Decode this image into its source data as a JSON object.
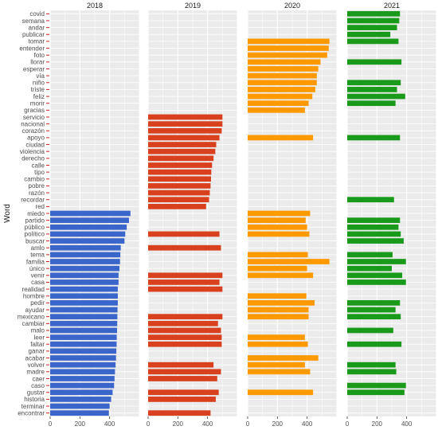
{
  "chart_data": {
    "type": "bar",
    "orientation": "horizontal",
    "ylabel": "Word",
    "xlim": [
      0,
      600
    ],
    "x_ticks": [
      "0",
      "200",
      "400"
    ],
    "grid": true,
    "words": [
      "covid",
      "semana",
      "andar",
      "publicar",
      "tomar",
      "entender",
      "foto",
      "llorar",
      "esperar",
      "vía",
      "niño",
      "triste",
      "feliz",
      "morir",
      "gracias",
      "servicio",
      "nacional",
      "corazón",
      "apoyo",
      "ciudad",
      "violencia",
      "derecho",
      "calle",
      "tipo",
      "cambio",
      "pobre",
      "razón",
      "recordar",
      "red",
      "miedo",
      "partido",
      "público",
      "político",
      "buscar",
      "amlo",
      "tema",
      "familia",
      "único",
      "venir",
      "casa",
      "realidad",
      "hombre",
      "pedir",
      "ayudar",
      "mexicano",
      "cambiar",
      "malo",
      "leer",
      "faltar",
      "ganar",
      "acabar",
      "volver",
      "madre",
      "caer",
      "caso",
      "gustar",
      "historia",
      "terminar",
      "encontrar"
    ],
    "panels": [
      {
        "label": "2018",
        "color": "#3a66cc",
        "values": [
          0,
          0,
          0,
          0,
          0,
          0,
          0,
          0,
          0,
          0,
          0,
          0,
          0,
          0,
          0,
          0,
          0,
          0,
          0,
          0,
          0,
          0,
          0,
          0,
          0,
          0,
          0,
          0,
          0,
          540,
          530,
          515,
          505,
          500,
          475,
          472,
          470,
          466,
          460,
          460,
          455,
          455,
          455,
          453,
          452,
          451,
          450,
          448,
          447,
          445,
          443,
          440,
          436,
          433,
          430,
          420,
          410,
          400,
          395
        ]
      },
      {
        "label": "2019",
        "color": "#d9411e",
        "values": [
          0,
          0,
          0,
          0,
          0,
          0,
          0,
          0,
          0,
          0,
          0,
          0,
          0,
          0,
          0,
          500,
          500,
          495,
          480,
          458,
          452,
          440,
          430,
          425,
          423,
          420,
          415,
          410,
          390,
          0,
          0,
          0,
          480,
          0,
          490,
          0,
          0,
          0,
          500,
          480,
          500,
          0,
          0,
          0,
          500,
          470,
          490,
          495,
          495,
          0,
          0,
          440,
          490,
          465,
          0,
          475,
          455,
          0,
          420
        ]
      },
      {
        "label": "2020",
        "color": "#ff9900",
        "values": [
          0,
          0,
          0,
          0,
          550,
          545,
          535,
          490,
          475,
          465,
          465,
          455,
          435,
          410,
          385,
          0,
          0,
          0,
          440,
          0,
          0,
          0,
          0,
          0,
          0,
          0,
          0,
          0,
          0,
          420,
          390,
          400,
          415,
          0,
          0,
          405,
          550,
          400,
          440,
          0,
          0,
          395,
          450,
          410,
          410,
          0,
          0,
          385,
          405,
          0,
          475,
          385,
          420,
          0,
          0,
          440,
          0,
          0,
          0
        ]
      },
      {
        "label": "2021",
        "color": "#1a9a1a",
        "values": [
          355,
          350,
          335,
          290,
          345,
          0,
          0,
          365,
          0,
          0,
          360,
          335,
          390,
          325,
          0,
          0,
          0,
          0,
          355,
          0,
          0,
          0,
          0,
          0,
          0,
          0,
          0,
          315,
          0,
          0,
          355,
          345,
          360,
          380,
          0,
          305,
          395,
          300,
          370,
          395,
          0,
          0,
          355,
          325,
          360,
          0,
          310,
          0,
          365,
          0,
          0,
          325,
          330,
          0,
          395,
          385,
          0,
          0,
          0
        ]
      }
    ]
  }
}
